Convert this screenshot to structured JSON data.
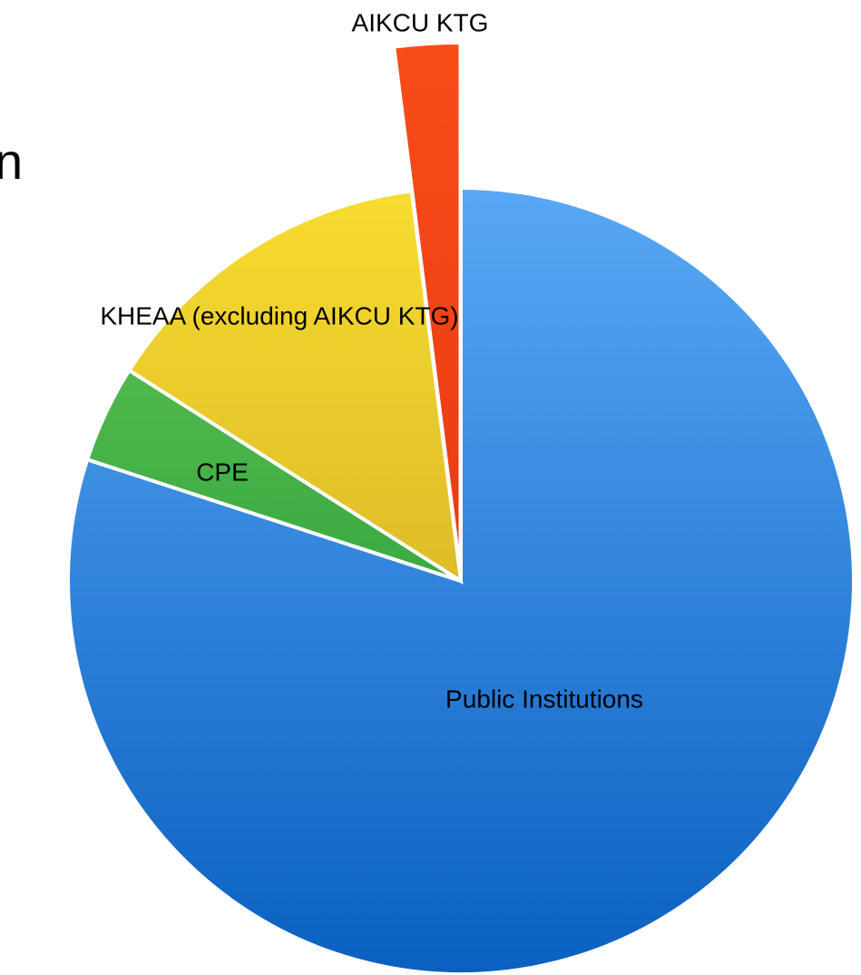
{
  "chart_data": {
    "type": "pie",
    "title": "n",
    "categories": [
      "Public Institutions",
      "CPE",
      "KHEAA (excluding AIKCU KTG)",
      "AIKCU KTG"
    ],
    "values": [
      80,
      4,
      14,
      2
    ],
    "colors": [
      [
        "#58a8f6",
        "#0a60c0"
      ],
      [
        "#62c456",
        "#12902e"
      ],
      [
        "#f8dc30",
        "#c39c20"
      ],
      [
        "#fa4c18",
        "#d62a0e"
      ]
    ],
    "exploded": "AIKCU KTG"
  }
}
